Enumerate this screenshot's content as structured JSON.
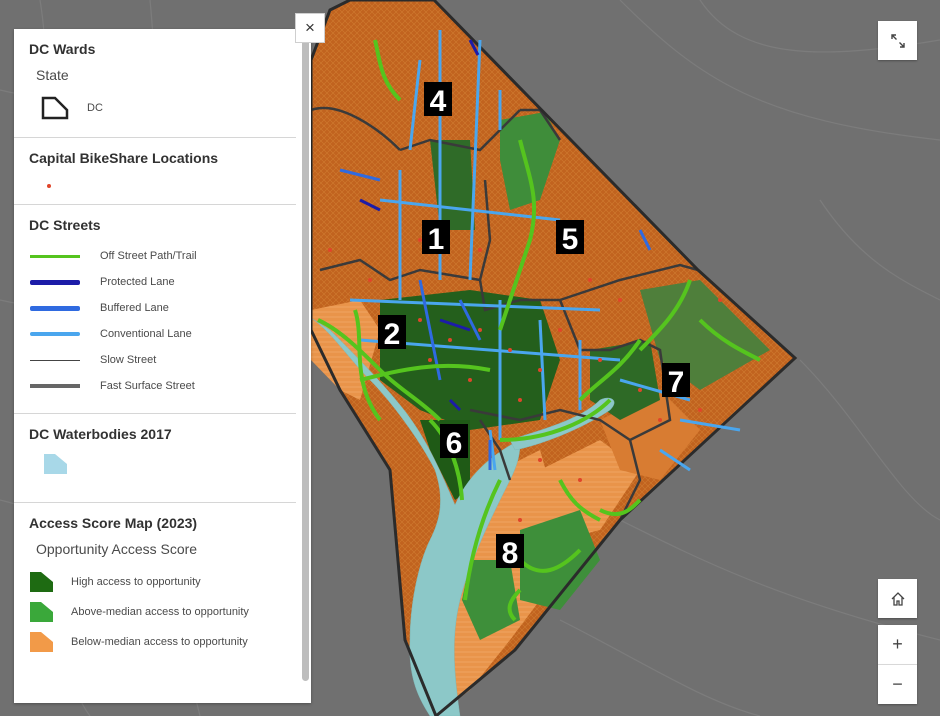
{
  "map": {
    "ward_labels": [
      "4",
      "1",
      "5",
      "2",
      "7",
      "6",
      "8"
    ]
  },
  "legend": {
    "wards": {
      "title": "DC Wards",
      "subtitle": "State",
      "item": "DC"
    },
    "bikeshare": {
      "title": "Capital BikeShare Locations"
    },
    "streets": {
      "title": "DC Streets",
      "items": [
        {
          "label": "Off Street Path/Trail",
          "color": "#55c41e"
        },
        {
          "label": "Protected Lane",
          "color": "#1c1ca8"
        },
        {
          "label": "Buffered Lane",
          "color": "#2f6ae0"
        },
        {
          "label": "Conventional Lane",
          "color": "#4aa6ee"
        },
        {
          "label": "Slow Street",
          "color": "#444444"
        },
        {
          "label": "Fast Surface Street",
          "color": "#666666"
        }
      ]
    },
    "water": {
      "title": "DC Waterbodies 2017",
      "color": "#a8d8e8"
    },
    "access": {
      "title": "Access Score Map (2023)",
      "subtitle": "Opportunity Access Score",
      "items": [
        {
          "label": "High access to opportunity",
          "color": "#1e6b12"
        },
        {
          "label": "Above-median access to opportunity",
          "color": "#3aa83a"
        },
        {
          "label": "Below-median access to opportunity",
          "color": "#f29a48"
        }
      ]
    }
  },
  "controls": {
    "close": "×",
    "zoom_in": "+",
    "zoom_out": "−"
  }
}
